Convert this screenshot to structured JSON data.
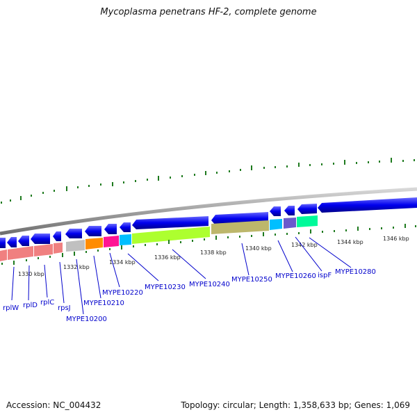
{
  "title": "Mycoplasma penetrans HF-2, complete genome",
  "footer": {
    "accession": "Accession: NC_004432",
    "topology": "Topology: circular; Length: 1,358,633 bp; Genes: 1,069"
  },
  "scale_labels": [
    "1330 kbp",
    "1332 kbp",
    "1334 kbp",
    "1336 kbp",
    "1338 kbp",
    "1340 kbp",
    "1342 kbp",
    "1344 kbp",
    "1346 kbp"
  ],
  "genes": {
    "forward": [
      {
        "color": "#f08080"
      },
      {
        "color": "#f08080"
      },
      {
        "color": "#f08080"
      },
      {
        "color": "#c0c0c0"
      },
      {
        "color": "#ff8c00"
      },
      {
        "color": "#ff1493"
      },
      {
        "color": "#00bfff"
      },
      {
        "color": "#adff2f"
      },
      {
        "color": "#bdb76b"
      },
      {
        "color": "#00bfff"
      },
      {
        "color": "#6a5acd"
      },
      {
        "color": "#00fa9a"
      }
    ],
    "labels": [
      "rplW",
      "rplD",
      "rplC",
      "rpsJ",
      "MYPE10200",
      "MYPE10210",
      "MYPE10220",
      "MYPE10230",
      "MYPE10240",
      "MYPE10250",
      "MYPE10260",
      "ispF",
      "MYPE10280"
    ]
  },
  "colors": {
    "cds": "#0000ee",
    "label": "#0000cc",
    "tick": "#1e7a1e",
    "backbone": "#909090"
  }
}
